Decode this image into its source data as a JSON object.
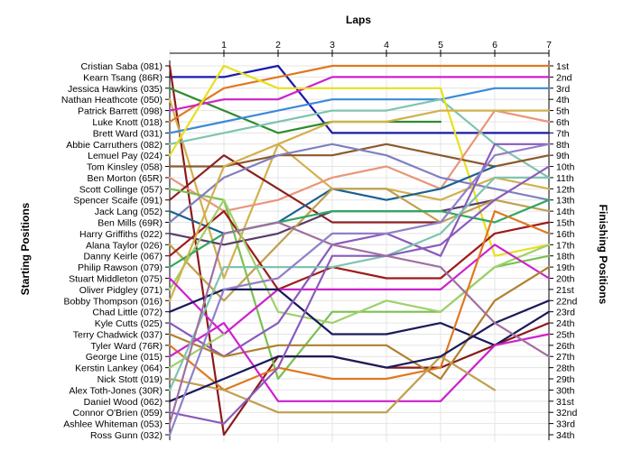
{
  "chart_data": {
    "type": "line",
    "title": "Laps",
    "ylabel_left": "Starting Positions",
    "ylabel_right": "Finishing Positions",
    "x": [
      0,
      1,
      2,
      3,
      4,
      5,
      6,
      7
    ],
    "x_tick_labels": [
      "1",
      "2",
      "3",
      "4",
      "5",
      "6",
      "7"
    ],
    "starting_labels": [
      "Cristian Saba (081)",
      "Kearn Tsang (86R)",
      "Jessica Hawkins (035)",
      "Nathan Heathcote (050)",
      "Patrick Barrett (098)",
      "Luke Knott (018)",
      "Brett Ward (031)",
      "Abbie Carruthers (082)",
      "Lemuel Pay (024)",
      "Tom Kinsley (058)",
      "Ben Morton (65R)",
      "Scott Collinge (057)",
      "Spencer Scaife (091)",
      "Jack Lang (052)",
      "Ben Mills (69R)",
      "Harry Griffiths (022)",
      "Alana Taylor (026)",
      "Danny Keirle (067)",
      "Philip Rawson (079)",
      "Stuart Middleton (075)",
      "Oliver Pidgley (071)",
      "Bobby Thompson (016)",
      "Chad Little (072)",
      "Kyle Cutts (025)",
      "Terry Chadwick (037)",
      "Tyler Ward (76R)",
      "George Line (015)",
      "Kerstin Lankey (064)",
      "Nick Stott (019)",
      "Alex Toth-Jones (30R)",
      "Daniel Wood (062)",
      "Connor O'Brien (059)",
      "Ashlee Whiteman (053)",
      "Ross Gunn (032)"
    ],
    "finishing_labels": [
      "1st",
      "2nd",
      "3rd",
      "4th",
      "5th",
      "6th",
      "7th",
      "8th",
      "9th",
      "10th",
      "11th",
      "12th",
      "13th",
      "14th",
      "15th",
      "16th",
      "17th",
      "18th",
      "19th",
      "20th",
      "21st",
      "22nd",
      "23rd",
      "24th",
      "25th",
      "26th",
      "27th",
      "28th",
      "29th",
      "30th",
      "31st",
      "32nd",
      "33rd",
      "34th"
    ],
    "ylim": [
      1,
      34
    ],
    "grid": true,
    "series": [
      {
        "color": "#1a1aa8",
        "values": [
          2,
          2,
          1,
          7,
          7,
          7,
          7,
          7
        ]
      },
      {
        "color": "#8b1a1a",
        "values": [
          1,
          34,
          27,
          27,
          28,
          28,
          26,
          24
        ]
      },
      {
        "color": "#2e8b2e",
        "values": [
          3,
          5,
          7,
          6,
          6,
          6,
          null,
          null
        ]
      },
      {
        "color": "#d2b04c",
        "values": [
          4,
          20,
          8,
          12,
          12,
          13,
          11,
          12
        ]
      },
      {
        "color": "#e07820",
        "values": [
          6,
          3,
          2,
          1,
          1,
          1,
          1,
          1
        ]
      },
      {
        "color": "#cc22cc",
        "values": [
          5,
          4,
          4,
          2,
          2,
          2,
          2,
          2
        ]
      },
      {
        "color": "#3a8ad8",
        "values": [
          7,
          6,
          5,
          4,
          4,
          4,
          3,
          3
        ]
      },
      {
        "color": "#7fc4b0",
        "values": [
          8,
          7,
          6,
          5,
          5,
          4,
          8,
          11
        ]
      },
      {
        "color": "#e8e020",
        "values": [
          9,
          1,
          3,
          3,
          3,
          3,
          18,
          17
        ]
      },
      {
        "color": "#8b5a2b",
        "values": [
          10,
          10,
          9,
          9,
          8,
          9,
          10,
          9
        ]
      },
      {
        "color": "#e9967a",
        "values": [
          11,
          14,
          13,
          11,
          10,
          12,
          5,
          6
        ]
      },
      {
        "color": "#8b2020",
        "values": [
          13,
          9,
          12,
          15,
          15,
          15,
          null,
          null
        ]
      },
      {
        "color": "#7ac050",
        "values": [
          12,
          13,
          29,
          23,
          23,
          23,
          19,
          18
        ]
      },
      {
        "color": "#8080c0",
        "values": [
          15,
          11,
          9,
          8,
          9,
          11,
          12,
          13
        ]
      },
      {
        "color": "#1a6090",
        "values": [
          14,
          16,
          15,
          12,
          13,
          12,
          10,
          null
        ]
      },
      {
        "color": "#5a3a6a",
        "values": [
          16,
          17,
          16,
          14,
          14,
          14,
          13,
          null
        ]
      },
      {
        "color": "#c0a050",
        "values": [
          17,
          22,
          17,
          12,
          12,
          15,
          13,
          14
        ]
      },
      {
        "color": "#a01a1a",
        "values": [
          18,
          14,
          21,
          19,
          20,
          20,
          16,
          15
        ]
      },
      {
        "color": "#9ed06a",
        "values": [
          21,
          13,
          23,
          24,
          22,
          23,
          19,
          17
        ]
      },
      {
        "color": "#30a860",
        "values": [
          19,
          16,
          15,
          14,
          14,
          14,
          15,
          13
        ]
      },
      {
        "color": "#d2b04c",
        "values": [
          22,
          10,
          8,
          6,
          6,
          5,
          5,
          5
        ]
      },
      {
        "color": "#cc22cc",
        "values": [
          20,
          25,
          21,
          21,
          21,
          21,
          17,
          20
        ]
      },
      {
        "color": "#1a1a5a",
        "values": [
          23,
          21,
          21,
          25,
          25,
          24,
          26,
          23
        ]
      },
      {
        "color": "#8a5abc",
        "values": [
          24,
          27,
          24,
          17,
          16,
          18,
          8,
          8
        ]
      },
      {
        "color": "#b08030",
        "values": [
          25,
          27,
          26,
          26,
          26,
          29,
          22,
          19
        ]
      },
      {
        "color": "#e07820",
        "values": [
          26,
          30,
          28,
          29,
          29,
          28,
          14,
          16
        ]
      },
      {
        "color": "#cc22cc",
        "values": [
          27,
          24,
          31,
          31,
          31,
          31,
          26,
          25
        ]
      },
      {
        "color": "#9ed06a",
        "values": [
          28,
          25,
          null,
          null,
          null,
          null,
          null,
          null
        ]
      },
      {
        "color": "#c0a050",
        "values": [
          29,
          30,
          32,
          32,
          32,
          27,
          30,
          null
        ]
      },
      {
        "color": "#7fc4b0",
        "values": [
          30,
          19,
          19,
          19,
          18,
          16,
          11,
          11
        ]
      },
      {
        "color": "#1a1a5a",
        "values": [
          31,
          29,
          27,
          27,
          28,
          27,
          24,
          22
        ]
      },
      {
        "color": "#8a5abc",
        "values": [
          32,
          33,
          28,
          18,
          18,
          17,
          13,
          10
        ]
      },
      {
        "color": "#a070a0",
        "values": [
          33,
          16,
          15,
          17,
          18,
          19,
          24,
          27
        ]
      },
      {
        "color": "#9080c8",
        "values": [
          34,
          21,
          20,
          16,
          16,
          15,
          9,
          8
        ]
      }
    ]
  }
}
